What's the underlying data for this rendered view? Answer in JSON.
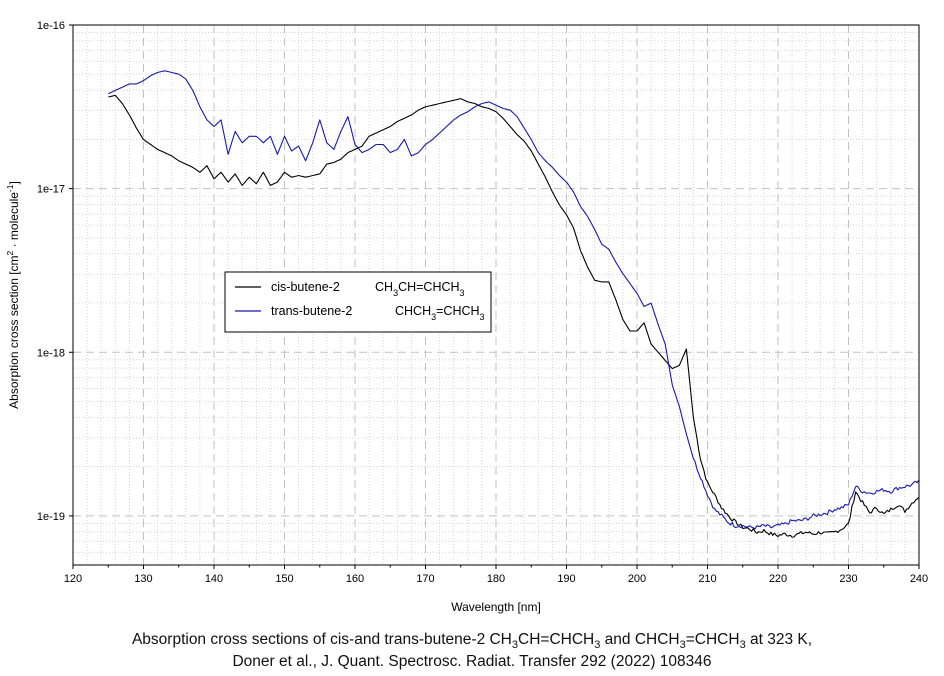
{
  "chart_data": {
    "type": "line",
    "xlabel": "Wavelength [nm]",
    "ylabel": "Absorption cross section [cm² · molecule⁻¹]",
    "ylabel_parts": {
      "main": "Absorption cross section [cm",
      "sup1": "2",
      "mid": " · molecule",
      "sup2": "-1",
      "end": "]"
    },
    "xlim": [
      120,
      240
    ],
    "ylim_log10": [
      -19.3,
      -16
    ],
    "yscale": "log",
    "grid": true,
    "x_ticks": [
      "120",
      "130",
      "140",
      "150",
      "160",
      "170",
      "180",
      "190",
      "200",
      "210",
      "220",
      "230",
      "240"
    ],
    "y_ticks": [
      {
        "label": "1e-16",
        "log10": -16
      },
      {
        "label": "1e-17",
        "log10": -17
      },
      {
        "label": "1e-18",
        "log10": -18
      },
      {
        "label": "1e-19",
        "log10": -19
      }
    ],
    "legend_position": "center-left",
    "series": [
      {
        "name": "cis-butene-2",
        "formula": "CH3CH=CHCH3",
        "formula_parts": [
          "CH",
          "3",
          "CH=CHCH",
          "3"
        ],
        "color": "#000000",
        "x": [
          125,
          126,
          127,
          128,
          129,
          130,
          131,
          132,
          133,
          134,
          135,
          136,
          137,
          138,
          139,
          140,
          141,
          142,
          143,
          144,
          145,
          146,
          147,
          148,
          149,
          150,
          151,
          152,
          153,
          154,
          155,
          156,
          157,
          158,
          159,
          160,
          161,
          162,
          163,
          164,
          165,
          166,
          167,
          168,
          169,
          170,
          171,
          172,
          173,
          174,
          175,
          176,
          177,
          178,
          179,
          180,
          181,
          182,
          183,
          184,
          185,
          186,
          187,
          188,
          189,
          190,
          191,
          192,
          193,
          194,
          195,
          196,
          197,
          198,
          199,
          200,
          201,
          202,
          203,
          204,
          205,
          206,
          207,
          208,
          209,
          210,
          211,
          212,
          213,
          214,
          215,
          216,
          217,
          218,
          219,
          220,
          221,
          222,
          223,
          224,
          225,
          226,
          227,
          228,
          229,
          230,
          231,
          232,
          233,
          234,
          235,
          236,
          237,
          238,
          239,
          240
        ],
        "log10_y": [
          -16.44,
          -16.43,
          -16.48,
          -16.55,
          -16.63,
          -16.7,
          -16.73,
          -16.76,
          -16.78,
          -16.8,
          -16.83,
          -16.85,
          -16.87,
          -16.9,
          -16.86,
          -16.94,
          -16.9,
          -16.96,
          -16.91,
          -16.98,
          -16.93,
          -16.97,
          -16.9,
          -16.98,
          -16.96,
          -16.9,
          -16.93,
          -16.92,
          -16.93,
          -16.92,
          -16.91,
          -16.85,
          -16.84,
          -16.82,
          -16.78,
          -16.76,
          -16.74,
          -16.68,
          -16.66,
          -16.64,
          -16.62,
          -16.59,
          -16.57,
          -16.55,
          -16.52,
          -16.5,
          -16.49,
          -16.48,
          -16.47,
          -16.46,
          -16.45,
          -16.47,
          -16.48,
          -16.5,
          -16.51,
          -16.53,
          -16.57,
          -16.62,
          -16.67,
          -16.71,
          -16.77,
          -16.85,
          -16.93,
          -17.02,
          -17.1,
          -17.16,
          -17.24,
          -17.38,
          -17.48,
          -17.56,
          -17.57,
          -17.57,
          -17.68,
          -17.8,
          -17.87,
          -17.87,
          -17.82,
          -17.95,
          -18.0,
          -18.05,
          -18.1,
          -18.08,
          -17.98,
          -18.4,
          -18.65,
          -18.8,
          -18.87,
          -18.95,
          -19.0,
          -19.04,
          -19.07,
          -19.08,
          -19.1,
          -19.09,
          -19.11,
          -19.12,
          -19.11,
          -19.12,
          -19.11,
          -19.1,
          -19.11,
          -19.1,
          -19.11,
          -19.1,
          -19.08,
          -19.05,
          -18.85,
          -18.92,
          -18.98,
          -18.95,
          -18.99,
          -18.96,
          -18.93,
          -18.97,
          -18.92,
          -18.88
        ]
      },
      {
        "name": "trans-butene-2",
        "formula": "CHCH3=CHCH3",
        "formula_parts": [
          "CHCH",
          "3",
          "=CHCH",
          "3"
        ],
        "color": "#1a1aa8",
        "x": [
          125,
          126,
          127,
          128,
          129,
          130,
          131,
          132,
          133,
          134,
          135,
          136,
          137,
          138,
          139,
          140,
          141,
          142,
          143,
          144,
          145,
          146,
          147,
          148,
          149,
          150,
          151,
          152,
          153,
          154,
          155,
          156,
          157,
          158,
          159,
          160,
          161,
          162,
          163,
          164,
          165,
          166,
          167,
          168,
          169,
          170,
          171,
          172,
          173,
          174,
          175,
          176,
          177,
          178,
          179,
          180,
          181,
          182,
          183,
          184,
          185,
          186,
          187,
          188,
          189,
          190,
          191,
          192,
          193,
          194,
          195,
          196,
          197,
          198,
          199,
          200,
          201,
          202,
          203,
          204,
          205,
          206,
          207,
          208,
          209,
          210,
          211,
          212,
          213,
          214,
          215,
          216,
          217,
          218,
          219,
          220,
          221,
          222,
          223,
          224,
          225,
          226,
          227,
          228,
          229,
          230,
          231,
          232,
          233,
          234,
          235,
          236,
          237,
          238,
          239,
          240
        ],
        "log10_y": [
          -16.42,
          -16.4,
          -16.38,
          -16.36,
          -16.36,
          -16.34,
          -16.31,
          -16.29,
          -16.28,
          -16.29,
          -16.3,
          -16.33,
          -16.4,
          -16.5,
          -16.58,
          -16.62,
          -16.58,
          -16.79,
          -16.65,
          -16.72,
          -16.68,
          -16.68,
          -16.72,
          -16.68,
          -16.79,
          -16.68,
          -16.77,
          -16.74,
          -16.83,
          -16.72,
          -16.58,
          -16.72,
          -16.76,
          -16.65,
          -16.56,
          -16.73,
          -16.78,
          -16.76,
          -16.73,
          -16.73,
          -16.78,
          -16.76,
          -16.7,
          -16.8,
          -16.78,
          -16.73,
          -16.7,
          -16.66,
          -16.62,
          -16.58,
          -16.55,
          -16.53,
          -16.5,
          -16.48,
          -16.47,
          -16.49,
          -16.51,
          -16.52,
          -16.56,
          -16.63,
          -16.7,
          -16.78,
          -16.83,
          -16.87,
          -16.92,
          -16.96,
          -17.02,
          -17.11,
          -17.17,
          -17.25,
          -17.34,
          -17.37,
          -17.45,
          -17.52,
          -17.58,
          -17.64,
          -17.72,
          -17.7,
          -17.83,
          -17.95,
          -18.2,
          -18.33,
          -18.5,
          -18.65,
          -18.76,
          -18.87,
          -18.96,
          -19.0,
          -19.04,
          -19.06,
          -19.06,
          -19.07,
          -19.07,
          -19.06,
          -19.07,
          -19.06,
          -19.05,
          -19.03,
          -19.03,
          -19.02,
          -19.0,
          -18.99,
          -18.98,
          -18.96,
          -18.95,
          -18.93,
          -18.82,
          -18.85,
          -18.86,
          -18.85,
          -18.84,
          -18.85,
          -18.83,
          -18.82,
          -18.81,
          -18.79
        ]
      }
    ]
  },
  "caption": {
    "line1_parts": [
      {
        "t": "Absorption cross sections of cis-and trans-butene-2 CH"
      },
      {
        "sub": "3"
      },
      {
        "t": "CH=CHCH"
      },
      {
        "sub": "3"
      },
      {
        "t": " and CHCH"
      },
      {
        "sub": "3"
      },
      {
        "t": "=CHCH"
      },
      {
        "sub": "3"
      },
      {
        "t": " at 323 K,"
      }
    ],
    "line2": "Doner et al., J. Quant. Spectrosc. Radiat. Transfer 292 (2022) 108346"
  }
}
